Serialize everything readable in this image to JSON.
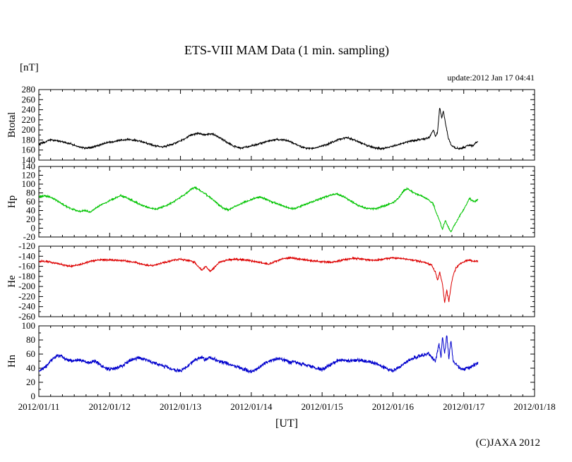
{
  "page": {
    "title": "ETS-VIII MAM Data (1 min. sampling)",
    "unit_label": "[nT]",
    "update_label": "update:2012 Jan 17 04:41",
    "xaxis_label": "[UT]",
    "copyright": "(C)JAXA 2012"
  },
  "chart_data": {
    "type": "line",
    "title": "ETS-VIII MAM Data (1 min. sampling)",
    "xlabel": "[UT]",
    "ylabel_unit": "[nT]",
    "update_note": "update:2012 Jan 17 04:41",
    "grid": false,
    "x_tick_labels": [
      "2012/01/11",
      "2012/01/12",
      "2012/01/13",
      "2012/01/14",
      "2012/01/15",
      "2012/01/16",
      "2012/01/17",
      "2012/01/18"
    ],
    "x_days_span": 7,
    "x_minor_per_day": 6,
    "data_end_day": 6.2,
    "panels": [
      {
        "name": "Btotal",
        "color": "#000000",
        "ylim": [
          140,
          280
        ],
        "ytick": 20,
        "noise": 2.2,
        "keypoints": [
          [
            0.0,
            172
          ],
          [
            0.08,
            175
          ],
          [
            0.15,
            180
          ],
          [
            0.25,
            179
          ],
          [
            0.35,
            176
          ],
          [
            0.45,
            172
          ],
          [
            0.55,
            167
          ],
          [
            0.65,
            164
          ],
          [
            0.75,
            165
          ],
          [
            0.85,
            170
          ],
          [
            0.95,
            174
          ],
          [
            1.05,
            177
          ],
          [
            1.15,
            180
          ],
          [
            1.25,
            181
          ],
          [
            1.35,
            180
          ],
          [
            1.45,
            177
          ],
          [
            1.55,
            172
          ],
          [
            1.65,
            168
          ],
          [
            1.75,
            166
          ],
          [
            1.85,
            170
          ],
          [
            1.95,
            175
          ],
          [
            2.05,
            182
          ],
          [
            2.15,
            190
          ],
          [
            2.25,
            193
          ],
          [
            2.35,
            190
          ],
          [
            2.45,
            192
          ],
          [
            2.55,
            185
          ],
          [
            2.65,
            176
          ],
          [
            2.75,
            168
          ],
          [
            2.85,
            164
          ],
          [
            2.95,
            166
          ],
          [
            3.05,
            170
          ],
          [
            3.15,
            174
          ],
          [
            3.25,
            178
          ],
          [
            3.35,
            181
          ],
          [
            3.45,
            180
          ],
          [
            3.55,
            177
          ],
          [
            3.65,
            170
          ],
          [
            3.75,
            164
          ],
          [
            3.85,
            163
          ],
          [
            3.95,
            166
          ],
          [
            4.05,
            170
          ],
          [
            4.15,
            176
          ],
          [
            4.25,
            182
          ],
          [
            4.35,
            185
          ],
          [
            4.45,
            180
          ],
          [
            4.55,
            174
          ],
          [
            4.65,
            168
          ],
          [
            4.75,
            164
          ],
          [
            4.85,
            163
          ],
          [
            4.95,
            166
          ],
          [
            5.05,
            170
          ],
          [
            5.15,
            174
          ],
          [
            5.25,
            178
          ],
          [
            5.35,
            180
          ],
          [
            5.45,
            182
          ],
          [
            5.52,
            186
          ],
          [
            5.57,
            200
          ],
          [
            5.6,
            188
          ],
          [
            5.63,
            195
          ],
          [
            5.66,
            245
          ],
          [
            5.69,
            222
          ],
          [
            5.71,
            238
          ],
          [
            5.74,
            215
          ],
          [
            5.78,
            185
          ],
          [
            5.82,
            170
          ],
          [
            5.88,
            164
          ],
          [
            5.95,
            163
          ],
          [
            6.02,
            166
          ],
          [
            6.08,
            170
          ],
          [
            6.12,
            168
          ],
          [
            6.16,
            173
          ],
          [
            6.2,
            176
          ]
        ]
      },
      {
        "name": "Hp",
        "color": "#00c400",
        "ylim": [
          -20,
          140
        ],
        "ytick": 20,
        "noise": 2.4,
        "keypoints": [
          [
            0.0,
            72
          ],
          [
            0.1,
            73
          ],
          [
            0.2,
            68
          ],
          [
            0.3,
            58
          ],
          [
            0.4,
            48
          ],
          [
            0.5,
            42
          ],
          [
            0.58,
            38
          ],
          [
            0.65,
            40
          ],
          [
            0.72,
            36
          ],
          [
            0.8,
            45
          ],
          [
            0.9,
            55
          ],
          [
            1.0,
            62
          ],
          [
            1.1,
            70
          ],
          [
            1.15,
            74
          ],
          [
            1.25,
            68
          ],
          [
            1.35,
            60
          ],
          [
            1.45,
            52
          ],
          [
            1.55,
            46
          ],
          [
            1.65,
            43
          ],
          [
            1.75,
            48
          ],
          [
            1.85,
            55
          ],
          [
            1.95,
            65
          ],
          [
            2.05,
            75
          ],
          [
            2.15,
            88
          ],
          [
            2.2,
            93
          ],
          [
            2.28,
            85
          ],
          [
            2.35,
            78
          ],
          [
            2.4,
            72
          ],
          [
            2.45,
            66
          ],
          [
            2.55,
            52
          ],
          [
            2.6,
            45
          ],
          [
            2.68,
            42
          ],
          [
            2.75,
            48
          ],
          [
            2.85,
            55
          ],
          [
            2.95,
            62
          ],
          [
            3.05,
            68
          ],
          [
            3.12,
            71
          ],
          [
            3.22,
            65
          ],
          [
            3.32,
            58
          ],
          [
            3.42,
            52
          ],
          [
            3.52,
            46
          ],
          [
            3.6,
            44
          ],
          [
            3.7,
            50
          ],
          [
            3.8,
            56
          ],
          [
            3.9,
            62
          ],
          [
            4.0,
            68
          ],
          [
            4.1,
            74
          ],
          [
            4.2,
            78
          ],
          [
            4.3,
            72
          ],
          [
            4.4,
            62
          ],
          [
            4.5,
            52
          ],
          [
            4.6,
            46
          ],
          [
            4.7,
            44
          ],
          [
            4.8,
            46
          ],
          [
            4.9,
            52
          ],
          [
            5.0,
            58
          ],
          [
            5.08,
            68
          ],
          [
            5.15,
            85
          ],
          [
            5.2,
            90
          ],
          [
            5.28,
            82
          ],
          [
            5.35,
            76
          ],
          [
            5.42,
            72
          ],
          [
            5.5,
            65
          ],
          [
            5.57,
            55
          ],
          [
            5.6,
            40
          ],
          [
            5.65,
            20
          ],
          [
            5.7,
            -2
          ],
          [
            5.74,
            18
          ],
          [
            5.78,
            2
          ],
          [
            5.82,
            -8
          ],
          [
            5.86,
            5
          ],
          [
            5.9,
            15
          ],
          [
            5.95,
            30
          ],
          [
            6.0,
            42
          ],
          [
            6.05,
            58
          ],
          [
            6.08,
            68
          ],
          [
            6.12,
            62
          ],
          [
            6.16,
            60
          ],
          [
            6.2,
            66
          ]
        ]
      },
      {
        "name": "He",
        "color": "#dd0000",
        "ylim": [
          -260,
          -120
        ],
        "ytick": 20,
        "noise": 2.2,
        "keypoints": [
          [
            0.0,
            -150
          ],
          [
            0.15,
            -151
          ],
          [
            0.3,
            -156
          ],
          [
            0.45,
            -160
          ],
          [
            0.6,
            -156
          ],
          [
            0.75,
            -149
          ],
          [
            0.9,
            -147
          ],
          [
            1.05,
            -148
          ],
          [
            1.2,
            -149
          ],
          [
            1.35,
            -152
          ],
          [
            1.5,
            -157
          ],
          [
            1.6,
            -159
          ],
          [
            1.75,
            -153
          ],
          [
            1.9,
            -148
          ],
          [
            2.0,
            -146
          ],
          [
            2.1,
            -148
          ],
          [
            2.2,
            -152
          ],
          [
            2.3,
            -168
          ],
          [
            2.36,
            -160
          ],
          [
            2.42,
            -170
          ],
          [
            2.48,
            -162
          ],
          [
            2.55,
            -152
          ],
          [
            2.65,
            -148
          ],
          [
            2.8,
            -146
          ],
          [
            2.95,
            -148
          ],
          [
            3.1,
            -152
          ],
          [
            3.25,
            -156
          ],
          [
            3.35,
            -150
          ],
          [
            3.45,
            -145
          ],
          [
            3.55,
            -143
          ],
          [
            3.7,
            -146
          ],
          [
            3.85,
            -149
          ],
          [
            4.0,
            -151
          ],
          [
            4.15,
            -152
          ],
          [
            4.3,
            -147
          ],
          [
            4.45,
            -144
          ],
          [
            4.6,
            -146
          ],
          [
            4.75,
            -148
          ],
          [
            4.9,
            -145
          ],
          [
            5.0,
            -143
          ],
          [
            5.15,
            -145
          ],
          [
            5.3,
            -148
          ],
          [
            5.45,
            -152
          ],
          [
            5.55,
            -158
          ],
          [
            5.6,
            -172
          ],
          [
            5.63,
            -188
          ],
          [
            5.66,
            -172
          ],
          [
            5.7,
            -195
          ],
          [
            5.73,
            -232
          ],
          [
            5.76,
            -208
          ],
          [
            5.79,
            -230
          ],
          [
            5.82,
            -200
          ],
          [
            5.85,
            -178
          ],
          [
            5.89,
            -163
          ],
          [
            5.95,
            -155
          ],
          [
            6.02,
            -150
          ],
          [
            6.08,
            -147
          ],
          [
            6.14,
            -150
          ],
          [
            6.2,
            -150
          ]
        ]
      },
      {
        "name": "Hn",
        "color": "#0000cd",
        "ylim": [
          0,
          100
        ],
        "ytick": 20,
        "noise": 3.2,
        "keypoints": [
          [
            0.0,
            35
          ],
          [
            0.1,
            42
          ],
          [
            0.2,
            55
          ],
          [
            0.3,
            58
          ],
          [
            0.4,
            52
          ],
          [
            0.5,
            50
          ],
          [
            0.55,
            52
          ],
          [
            0.7,
            48
          ],
          [
            0.8,
            50
          ],
          [
            0.9,
            42
          ],
          [
            1.0,
            38
          ],
          [
            1.1,
            40
          ],
          [
            1.2,
            45
          ],
          [
            1.3,
            52
          ],
          [
            1.4,
            55
          ],
          [
            1.5,
            52
          ],
          [
            1.6,
            48
          ],
          [
            1.7,
            45
          ],
          [
            1.8,
            42
          ],
          [
            1.9,
            38
          ],
          [
            2.0,
            36
          ],
          [
            2.1,
            42
          ],
          [
            2.2,
            52
          ],
          [
            2.3,
            56
          ],
          [
            2.35,
            52
          ],
          [
            2.4,
            55
          ],
          [
            2.5,
            52
          ],
          [
            2.6,
            48
          ],
          [
            2.7,
            45
          ],
          [
            2.8,
            42
          ],
          [
            2.9,
            38
          ],
          [
            3.0,
            35
          ],
          [
            3.1,
            40
          ],
          [
            3.2,
            48
          ],
          [
            3.3,
            52
          ],
          [
            3.4,
            54
          ],
          [
            3.5,
            50
          ],
          [
            3.55,
            48
          ],
          [
            3.6,
            50
          ],
          [
            3.7,
            46
          ],
          [
            3.8,
            44
          ],
          [
            3.9,
            40
          ],
          [
            4.0,
            38
          ],
          [
            4.1,
            44
          ],
          [
            4.2,
            50
          ],
          [
            4.3,
            52
          ],
          [
            4.4,
            50
          ],
          [
            4.5,
            52
          ],
          [
            4.6,
            50
          ],
          [
            4.7,
            48
          ],
          [
            4.8,
            45
          ],
          [
            4.9,
            40
          ],
          [
            5.0,
            36
          ],
          [
            5.1,
            42
          ],
          [
            5.2,
            50
          ],
          [
            5.3,
            55
          ],
          [
            5.4,
            58
          ],
          [
            5.5,
            60
          ],
          [
            5.55,
            55
          ],
          [
            5.6,
            50
          ],
          [
            5.65,
            75
          ],
          [
            5.68,
            55
          ],
          [
            5.7,
            85
          ],
          [
            5.73,
            60
          ],
          [
            5.76,
            88
          ],
          [
            5.79,
            55
          ],
          [
            5.82,
            80
          ],
          [
            5.85,
            50
          ],
          [
            5.9,
            45
          ],
          [
            5.95,
            40
          ],
          [
            6.0,
            38
          ],
          [
            6.05,
            40
          ],
          [
            6.1,
            42
          ],
          [
            6.15,
            45
          ],
          [
            6.2,
            48
          ]
        ]
      }
    ]
  }
}
